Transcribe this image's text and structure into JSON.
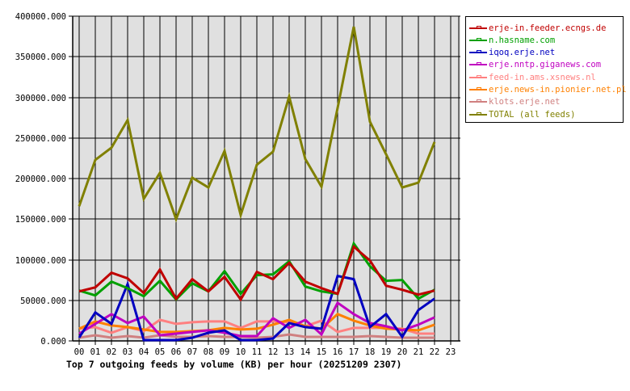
{
  "caption": "Top 7 outgoing feeds by volume (KB) per hour (20251209 2307)",
  "chart_data": {
    "type": "line",
    "title": "Top 7 outgoing feeds by volume (KB) per hour (20251209 2307)",
    "xlabel": "",
    "ylabel": "",
    "ylim": [
      0,
      400000
    ],
    "y_ticks": [
      "0.000",
      "50000.000",
      "100000.000",
      "150000.000",
      "200000.000",
      "250000.000",
      "300000.000",
      "350000.000",
      "400000.000"
    ],
    "x": [
      "00",
      "01",
      "02",
      "03",
      "04",
      "05",
      "06",
      "07",
      "08",
      "09",
      "10",
      "11",
      "12",
      "13",
      "14",
      "15",
      "16",
      "17",
      "18",
      "19",
      "20",
      "21",
      "22",
      "23"
    ],
    "grid": true,
    "legend_position": "right",
    "series": [
      {
        "name": "erje-in.feeder.ecngs.de",
        "color": "#c00000",
        "values": [
          61000,
          66000,
          84000,
          77000,
          59000,
          88000,
          52000,
          76000,
          61000,
          79000,
          51000,
          85000,
          76000,
          96000,
          73000,
          65000,
          58000,
          116000,
          99000,
          68000,
          63000,
          57000,
          62000
        ]
      },
      {
        "name": "n.hasname.com",
        "color": "#00a000",
        "values": [
          62000,
          56000,
          73000,
          65000,
          55000,
          74000,
          51000,
          71000,
          61000,
          86000,
          58000,
          81000,
          82000,
          98000,
          67000,
          61000,
          58000,
          120000,
          92000,
          74000,
          75000,
          52000,
          63000
        ]
      },
      {
        "name": "iqoq.erje.net",
        "color": "#0000c0",
        "values": [
          4000,
          35000,
          21000,
          70000,
          1000,
          1000,
          1000,
          4000,
          10000,
          13000,
          1000,
          1000,
          3000,
          22000,
          17000,
          15000,
          80000,
          76000,
          17000,
          33000,
          5000,
          38000,
          52000
        ]
      },
      {
        "name": "erje.nntp.giganews.com",
        "color": "#c000c0",
        "values": [
          9000,
          21000,
          33000,
          22000,
          30000,
          7000,
          9000,
          11000,
          13000,
          10000,
          6000,
          6000,
          28000,
          16000,
          26000,
          8000,
          47000,
          33000,
          22000,
          18000,
          13000,
          20000,
          29000
        ]
      },
      {
        "name": "feed-in.ams.xsnews.nl",
        "color": "#ff8080",
        "values": [
          15000,
          17000,
          10000,
          17000,
          12000,
          26000,
          21000,
          23000,
          24000,
          24000,
          16000,
          24000,
          24000,
          23000,
          18000,
          25000,
          11000,
          16000,
          16000,
          16000,
          15000,
          9000,
          9000
        ]
      },
      {
        "name": "erje.news-in.pionier.net.pl",
        "color": "#ff8000",
        "values": [
          15000,
          24000,
          19000,
          17000,
          14000,
          11000,
          11000,
          12000,
          13000,
          16000,
          14000,
          15000,
          20000,
          26000,
          18000,
          15000,
          33000,
          25000,
          19000,
          15000,
          14000,
          13000,
          20000
        ]
      },
      {
        "name": "klots.erje.net",
        "color": "#d08080",
        "values": [
          4000,
          7000,
          4000,
          6000,
          4000,
          7000,
          5000,
          5000,
          6000,
          5000,
          5000,
          4000,
          5000,
          8000,
          5000,
          5000,
          5000,
          5000,
          6000,
          5000,
          4000,
          4000,
          4000
        ]
      },
      {
        "name": "TOTAL (all feeds)",
        "color": "#808000",
        "values": [
          166000,
          223000,
          238000,
          272000,
          175000,
          207000,
          150000,
          201000,
          189000,
          234000,
          155000,
          217000,
          233000,
          301000,
          224000,
          190000,
          287000,
          387000,
          270000,
          230000,
          189000,
          195000,
          245000
        ]
      }
    ]
  }
}
